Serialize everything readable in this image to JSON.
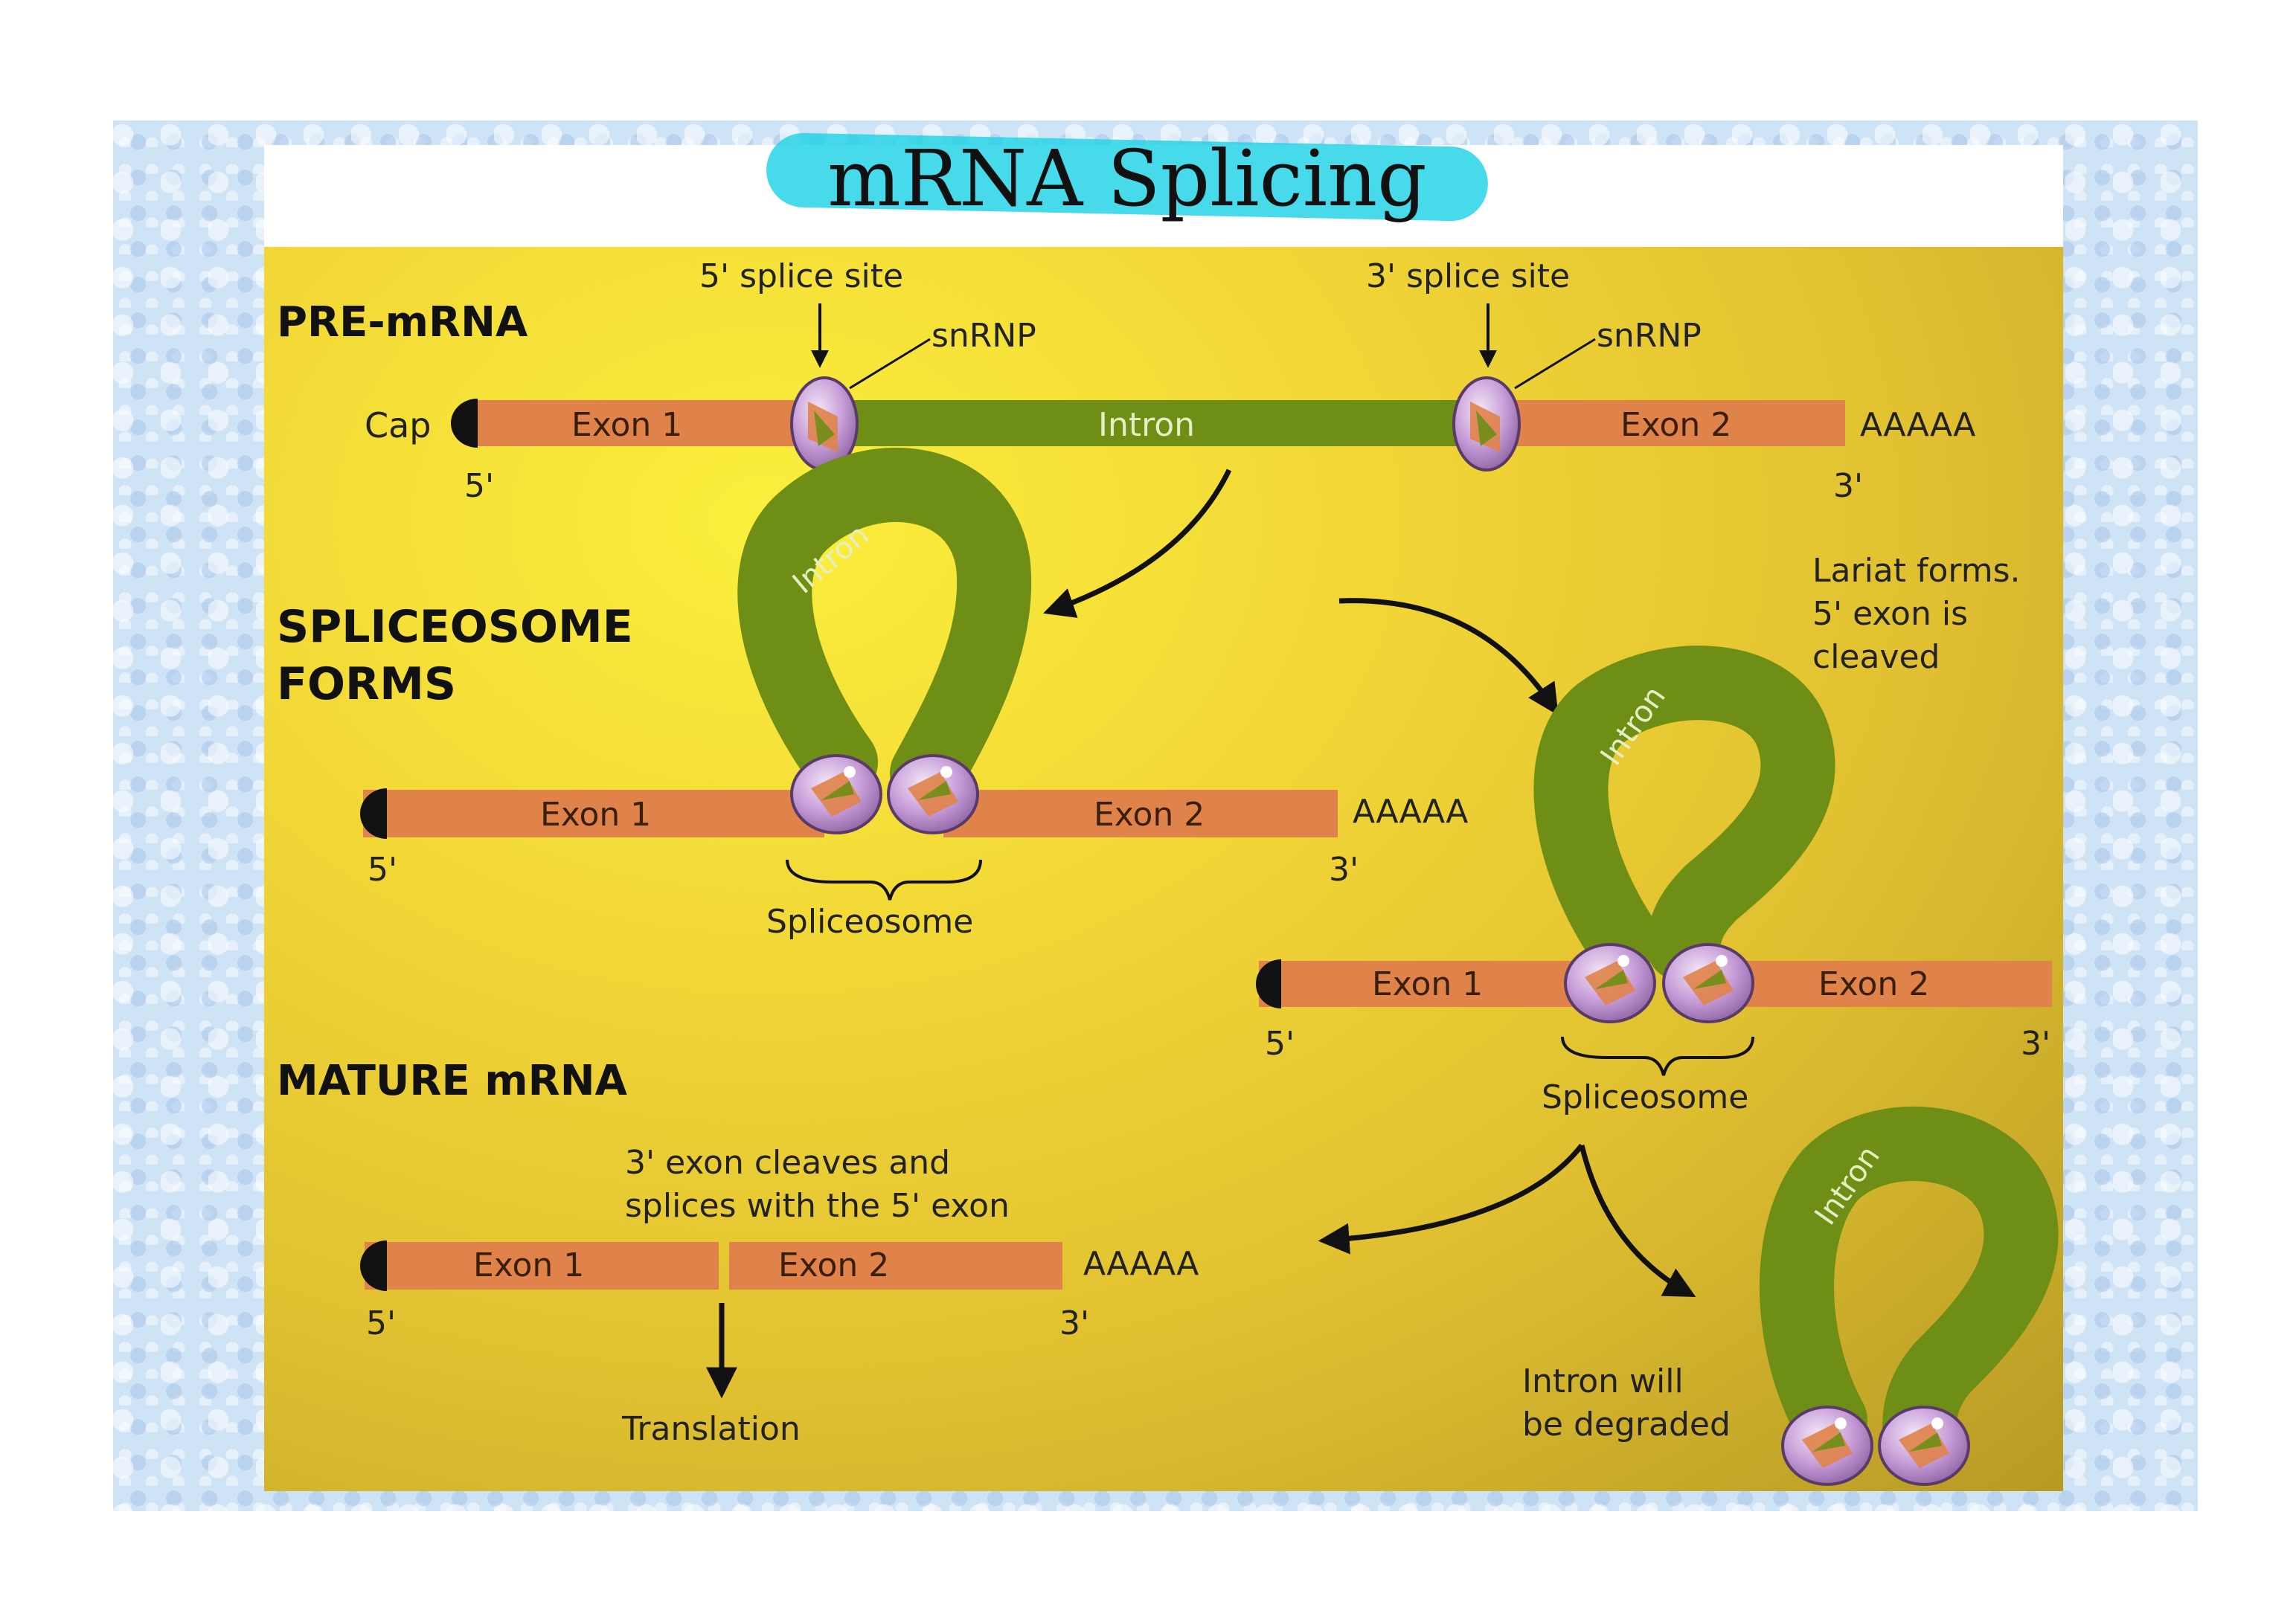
{
  "title": "mRNA Splicing",
  "colors": {
    "exon": "#e0834a",
    "intron": "#6e8e16",
    "cap": "#111111",
    "snrnp_fill": "#c79ed8",
    "panel": "#f1d536",
    "title_highlight": "#27d3e6"
  },
  "sections": {
    "pre_mrna": "PRE-mRNA",
    "spliceosome_forms_1": "SPLICEOSOME",
    "spliceosome_forms_2": "FORMS",
    "mature_mrna": "MATURE mRNA"
  },
  "pre_mrna": {
    "five_splice_site": "5' splice site",
    "three_splice_site": "3' splice site",
    "snrnp": "snRNP",
    "cap": "Cap",
    "exon1": "Exon 1",
    "intron": "Intron",
    "exon2": "Exon 2",
    "polyA": "AAAAA",
    "five_prime": "5'",
    "three_prime": "3'"
  },
  "spliceosome_stage": {
    "intron": "Intron",
    "exon1": "Exon 1",
    "exon2": "Exon 2",
    "polyA": "AAAAA",
    "five_prime": "5'",
    "three_prime": "3'",
    "spliceosome": "Spliceosome"
  },
  "lariat_stage": {
    "note_line1": "Lariat forms.",
    "note_line2": "5' exon is",
    "note_line3": "cleaved",
    "intron": "Intron",
    "exon1": "Exon 1",
    "exon2": "Exon 2",
    "five_prime": "5'",
    "three_prime": "3'",
    "spliceosome": "Spliceosome"
  },
  "mature": {
    "note_line1": "3' exon cleaves and",
    "note_line2": "splices with the 5' exon",
    "exon1": "Exon 1",
    "exon2": "Exon 2",
    "polyA": "AAAAA",
    "five_prime": "5'",
    "three_prime": "3'",
    "translation": "Translation"
  },
  "degraded": {
    "intron": "Intron",
    "note_line1": "Intron will",
    "note_line2": "be degraded"
  }
}
